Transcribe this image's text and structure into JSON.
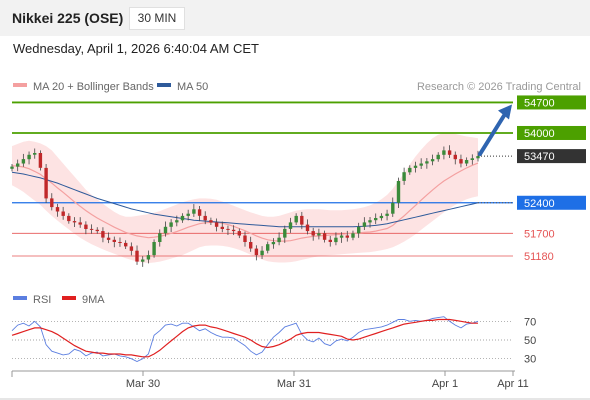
{
  "header": {
    "title": "Nikkei 225 (OSE)",
    "timeframe": "30 MIN"
  },
  "datetime": "Wednesday, April 1, 2026 6:40:04 AM CET",
  "credit": "Research © 2026 Trading Central",
  "colors": {
    "resistance": "#4ca000",
    "support": "#e55555",
    "current": "#333333",
    "pivot": "#1e6fe6",
    "ma20": "#f4a0a0",
    "ma50": "#2e5a9a",
    "band": "#fde3e3",
    "arrow": "#2e64b0",
    "rsi": "#5b7ee0",
    "rsi_ma": "#e02020"
  },
  "chart_data": [
    {
      "type": "candlestick",
      "legend": [
        {
          "name": "MA 20 + Bollinger Bands",
          "color": "#f4a0a0"
        },
        {
          "name": "MA 50",
          "color": "#2e5a9a"
        }
      ],
      "legend_placement": "top-left",
      "ylim": [
        50400,
        55100
      ],
      "x_ticks": [
        "Mar 30",
        "Mar 31",
        "Apr 1",
        "Apr 11"
      ],
      "levels": [
        {
          "value": 54700,
          "label": "54700",
          "kind": "resistance"
        },
        {
          "value": 54000,
          "label": "54000",
          "kind": "resistance"
        },
        {
          "value": 53470,
          "label": "53470",
          "kind": "current"
        },
        {
          "value": 52400,
          "label": "52400",
          "kind": "pivot"
        },
        {
          "value": 51700,
          "label": "51700",
          "kind": "support"
        },
        {
          "value": 51180,
          "label": "51180",
          "kind": "support"
        }
      ],
      "close": [
        53230,
        53300,
        53400,
        53500,
        53540,
        53200,
        52500,
        52300,
        52200,
        52100,
        51980,
        51950,
        51900,
        51800,
        51780,
        51750,
        51600,
        51550,
        51500,
        51480,
        51400,
        51300,
        51050,
        51100,
        51200,
        51500,
        51700,
        51850,
        51950,
        52000,
        52100,
        52150,
        52250,
        52100,
        52000,
        51950,
        51850,
        51800,
        51780,
        51750,
        51650,
        51500,
        51350,
        51200,
        51300,
        51450,
        51500,
        51600,
        51800,
        51950,
        52100,
        51900,
        51750,
        51650,
        51700,
        51550,
        51500,
        51600,
        51650,
        51600,
        51700,
        51850,
        51950,
        52000,
        52050,
        52100,
        52150,
        52400,
        52900,
        53100,
        53200,
        53250,
        53300,
        53350,
        53400,
        53500,
        53600,
        53500,
        53400,
        53300,
        53380,
        53420,
        53470
      ],
      "ma20": [
        53250,
        53240,
        53220,
        53180,
        53120,
        53050,
        52950,
        52850,
        52740,
        52640,
        52530,
        52420,
        52320,
        52220,
        52130,
        52050,
        51980,
        51910,
        51840,
        51780,
        51720,
        51680,
        51640,
        51620,
        51600,
        51610,
        51630,
        51660,
        51700,
        51740,
        51790,
        51840,
        51880,
        51920,
        51940,
        51950,
        51950,
        51930,
        51900,
        51860,
        51810,
        51760,
        51700,
        51640,
        51590,
        51550,
        51530,
        51520,
        51520,
        51530,
        51560,
        51590,
        51610,
        51630,
        51640,
        51650,
        51660,
        51670,
        51680,
        51690,
        51700,
        51710,
        51720,
        51730,
        51750,
        51780,
        51810,
        51880,
        51990,
        52100,
        52220,
        52340,
        52460,
        52580,
        52690,
        52800,
        52900,
        52980,
        53060,
        53130,
        53200,
        53260,
        53310
      ],
      "upper": [
        53700,
        53750,
        53800,
        53820,
        53800,
        53760,
        53700,
        53600,
        53450,
        53300,
        53150,
        53000,
        52850,
        52700,
        52580,
        52480,
        52380,
        52280,
        52190,
        52120,
        52080,
        52080,
        52100,
        52120,
        52140,
        52170,
        52210,
        52260,
        52310,
        52360,
        52410,
        52450,
        52480,
        52500,
        52500,
        52490,
        52470,
        52430,
        52380,
        52330,
        52280,
        52230,
        52180,
        52140,
        52100,
        52080,
        52080,
        52100,
        52140,
        52180,
        52220,
        52240,
        52250,
        52250,
        52250,
        52240,
        52230,
        52230,
        52230,
        52240,
        52250,
        52270,
        52300,
        52340,
        52400,
        52480,
        52580,
        52720,
        52900,
        53080,
        53280,
        53460,
        53620,
        53760,
        53880,
        53960,
        54000,
        54000,
        53980,
        53950,
        53920,
        53900,
        53880
      ],
      "lower": [
        52800,
        52730,
        52650,
        52550,
        52450,
        52350,
        52220,
        52100,
        51990,
        51890,
        51790,
        51690,
        51600,
        51520,
        51450,
        51390,
        51330,
        51280,
        51230,
        51180,
        51130,
        51090,
        51050,
        51030,
        51020,
        51030,
        51050,
        51080,
        51120,
        51160,
        51200,
        51260,
        51320,
        51380,
        51410,
        51420,
        51420,
        51410,
        51390,
        51360,
        51320,
        51270,
        51210,
        51150,
        51100,
        51060,
        51040,
        51030,
        51030,
        51040,
        51060,
        51090,
        51120,
        51150,
        51170,
        51190,
        51200,
        51210,
        51220,
        51230,
        51240,
        51250,
        51260,
        51270,
        51290,
        51310,
        51340,
        51380,
        51440,
        51510,
        51590,
        51680,
        51780,
        51880,
        51980,
        52080,
        52180,
        52270,
        52350,
        52420,
        52480,
        52520,
        52550
      ],
      "ma50": [
        53100,
        53080,
        53060,
        53030,
        53000,
        52970,
        52930,
        52890,
        52850,
        52800,
        52750,
        52700,
        52650,
        52600,
        52550,
        52500,
        52460,
        52420,
        52380,
        52340,
        52300,
        52260,
        52230,
        52200,
        52170,
        52140,
        52120,
        52100,
        52080,
        52060,
        52040,
        52020,
        52000,
        51990,
        51980,
        51970,
        51960,
        51950,
        51940,
        51930,
        51920,
        51910,
        51900,
        51890,
        51880,
        51870,
        51860,
        51850,
        51850,
        51850,
        51850,
        51850,
        51850,
        51850,
        51850,
        51850,
        51850,
        51850,
        51850,
        51850,
        51850,
        51855,
        51860,
        51870,
        51880,
        51900,
        51920,
        51950,
        51980,
        52010,
        52040,
        52070,
        52100,
        52130,
        52160,
        52190,
        52220,
        52250,
        52280,
        52310,
        52340,
        52370,
        52400
      ],
      "projection": {
        "from": 53470,
        "to": 54700
      }
    },
    {
      "type": "line",
      "legend": [
        {
          "name": "RSI",
          "color": "#5b7ee0"
        },
        {
          "name": "9MA",
          "color": "#e02020"
        }
      ],
      "ylim": [
        20,
        80
      ],
      "y_ticks": [
        "70",
        "50",
        "30"
      ],
      "series": [
        {
          "name": "RSI",
          "values": [
            60,
            66,
            68,
            65,
            70,
            64,
            45,
            38,
            36,
            34,
            35,
            40,
            38,
            33,
            36,
            37,
            33,
            34,
            35,
            33,
            32,
            30,
            27,
            30,
            35,
            55,
            60,
            66,
            67,
            65,
            68,
            68,
            64,
            60,
            62,
            58,
            55,
            53,
            53,
            52,
            48,
            44,
            38,
            34,
            37,
            45,
            53,
            58,
            64,
            66,
            68,
            56,
            50,
            48,
            52,
            46,
            44,
            49,
            51,
            49,
            53,
            58,
            61,
            62,
            63,
            64,
            66,
            69,
            72,
            72,
            70,
            71,
            70,
            71,
            73,
            74,
            75,
            70,
            66,
            63,
            67,
            68,
            70
          ]
        },
        {
          "name": "9MA",
          "values": [
            55,
            57,
            59,
            61,
            63,
            63,
            61,
            59,
            56,
            52,
            48,
            44,
            41,
            38,
            37,
            36,
            36,
            35,
            35,
            35,
            34,
            34,
            33,
            32,
            32,
            35,
            39,
            44,
            49,
            54,
            59,
            63,
            65,
            66,
            66,
            64,
            63,
            61,
            59,
            57,
            55,
            53,
            50,
            46,
            43,
            42,
            43,
            45,
            48,
            51,
            55,
            57,
            58,
            58,
            58,
            57,
            56,
            55,
            54,
            51,
            50,
            51,
            53,
            55,
            57,
            59,
            61,
            63,
            65,
            67,
            68,
            69,
            70,
            71,
            71,
            72,
            72,
            72,
            71,
            70,
            69,
            68,
            68
          ]
        }
      ]
    }
  ]
}
